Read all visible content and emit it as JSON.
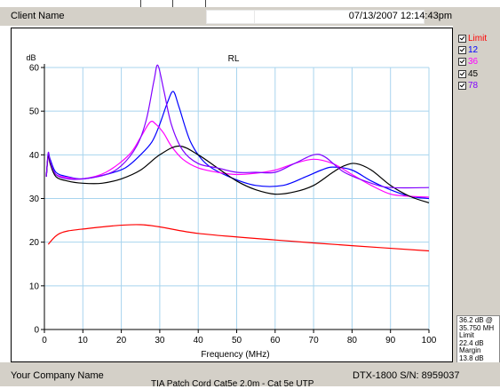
{
  "header": {
    "client_name": "Client Name",
    "datetime": "07/13/2007 12:14:43pm"
  },
  "footer": {
    "company_name": "Your Company Name",
    "device": "DTX-1800 S/N: 8959037",
    "cable_label": "TIA Patch Cord Cat5e 2.0m - Cat 5e UTP"
  },
  "readout": {
    "line1": "36.2 dB @",
    "line2": "35.750 MH",
    "line3": "Limit",
    "line4": "22.4 dB",
    "line5": "Margin",
    "line6": "13.8 dB"
  },
  "legend": [
    {
      "label": "Limit",
      "color": "#ff0000",
      "checked": true
    },
    {
      "label": "12",
      "color": "#0000ff",
      "checked": true
    },
    {
      "label": "36",
      "color": "#ff00ff",
      "checked": true
    },
    {
      "label": "45",
      "color": "#000000",
      "checked": true
    },
    {
      "label": "78",
      "color": "#8000ff",
      "checked": true
    }
  ],
  "chart_data": {
    "type": "line",
    "title": "RL",
    "xlabel": "Frequency (MHz)",
    "ylabel": "dB",
    "xlim": [
      0,
      100
    ],
    "ylim": [
      0,
      60
    ],
    "x_ticks": [
      0,
      10,
      20,
      30,
      40,
      50,
      60,
      70,
      80,
      90,
      100
    ],
    "y_ticks": [
      0,
      10,
      20,
      30,
      40,
      50,
      60
    ],
    "grid": true,
    "series": [
      {
        "name": "Limit",
        "color": "#ff0000",
        "x": [
          1,
          4,
          10,
          25,
          40,
          60,
          80,
          100
        ],
        "y": [
          19.5,
          22,
          23,
          24,
          22,
          20.5,
          19.2,
          18
        ]
      },
      {
        "name": "12",
        "color": "#0000ff",
        "x": [
          0.5,
          1,
          1.5,
          3,
          6,
          10,
          16,
          21,
          25,
          28,
          30,
          32,
          33.5,
          35,
          38,
          42,
          48,
          55,
          62,
          68,
          72,
          75,
          80,
          85,
          90,
          95,
          100
        ],
        "y": [
          35,
          40,
          39,
          36,
          35,
          34.5,
          35.5,
          37,
          40,
          43,
          47,
          52,
          54.5,
          51,
          43,
          38,
          35,
          33,
          33,
          35,
          36.5,
          37.2,
          36.5,
          34,
          32,
          30.5,
          30
        ]
      },
      {
        "name": "36",
        "color": "#ff00ff",
        "x": [
          0.5,
          1,
          1.5,
          3,
          6,
          10,
          16,
          22,
          25,
          27.5,
          29,
          31,
          33,
          36,
          40,
          45,
          50,
          55,
          60,
          65,
          70,
          75,
          80,
          85,
          90,
          95,
          100
        ],
        "y": [
          35,
          40,
          38,
          35.5,
          34.8,
          34.5,
          36,
          40,
          44,
          47.5,
          47,
          45,
          42,
          39,
          37,
          36,
          35.5,
          35.8,
          36.5,
          38,
          39,
          38,
          35.5,
          33,
          31,
          30.5,
          30.3
        ]
      },
      {
        "name": "45",
        "color": "#000000",
        "x": [
          0.5,
          1,
          1.5,
          3,
          6,
          10,
          15,
          20,
          25,
          30,
          35,
          40,
          45,
          50,
          55,
          60,
          65,
          70,
          75,
          78,
          81,
          85,
          90,
          95,
          100
        ],
        "y": [
          35,
          40,
          38,
          35,
          34,
          33.5,
          33.5,
          34.5,
          36.5,
          40,
          42,
          40,
          37,
          34,
          32,
          31,
          31.5,
          33,
          36,
          37.5,
          38,
          36.5,
          33,
          30.5,
          29
        ]
      },
      {
        "name": "78",
        "color": "#8000ff",
        "x": [
          0.5,
          1,
          1.5,
          3,
          6,
          10,
          16,
          20,
          24,
          26.5,
          28.5,
          29.5,
          31,
          33,
          36,
          40,
          45,
          50,
          55,
          60,
          65,
          70,
          73,
          78,
          85,
          90,
          100
        ],
        "y": [
          35,
          40.5,
          38.5,
          35.5,
          34.5,
          34.5,
          35.5,
          37.5,
          42,
          48,
          57,
          60.5,
          55,
          47,
          41,
          38,
          37,
          36,
          36,
          36,
          38,
          40,
          39.5,
          36,
          33.5,
          32.5,
          32.5
        ]
      }
    ]
  }
}
